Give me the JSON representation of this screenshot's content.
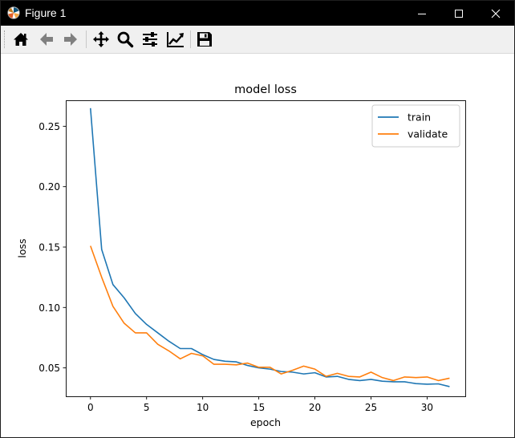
{
  "window": {
    "title": "Figure 1",
    "controls": {
      "minimize_icon": "minimize-icon",
      "maximize_icon": "maximize-icon",
      "close_icon": "close-icon"
    }
  },
  "toolbar": {
    "buttons": [
      {
        "name": "home",
        "icon": "home-icon"
      },
      {
        "name": "back",
        "icon": "back-arrow-icon"
      },
      {
        "name": "forward",
        "icon": "forward-arrow-icon"
      },
      {
        "name": "pan",
        "icon": "move-icon"
      },
      {
        "name": "zoom",
        "icon": "magnifier-icon"
      },
      {
        "name": "subplots",
        "icon": "sliders-icon"
      },
      {
        "name": "edit-curves",
        "icon": "trend-chart-icon"
      },
      {
        "name": "save",
        "icon": "floppy-disk-icon"
      }
    ]
  },
  "chart_data": {
    "type": "line",
    "title": "model loss",
    "xlabel": "epoch",
    "ylabel": "loss",
    "xlim": [
      -2.2,
      33.4
    ],
    "ylim": [
      0.0265,
      0.2715
    ],
    "xticks": [
      0,
      5,
      10,
      15,
      20,
      25,
      30
    ],
    "xtick_labels": [
      "0",
      "5",
      "10",
      "15",
      "20",
      "25",
      "30"
    ],
    "yticks": [
      0.05,
      0.1,
      0.15,
      0.2,
      0.25
    ],
    "ytick_labels": [
      "0.05",
      "0.10",
      "0.15",
      "0.20",
      "0.25"
    ],
    "grid": false,
    "legend_position": "top-right",
    "x": [
      0,
      1,
      2,
      3,
      4,
      5,
      6,
      7,
      8,
      9,
      10,
      11,
      12,
      13,
      14,
      15,
      16,
      17,
      18,
      19,
      20,
      21,
      22,
      23,
      24,
      25,
      26,
      27,
      28,
      29,
      30,
      31,
      32
    ],
    "series": [
      {
        "name": "train",
        "color": "#1f77b4",
        "values": [
          0.265,
          0.148,
          0.119,
          0.108,
          0.095,
          0.086,
          0.079,
          0.072,
          0.066,
          0.066,
          0.061,
          0.057,
          0.0555,
          0.055,
          0.052,
          0.05,
          0.049,
          0.047,
          0.0465,
          0.045,
          0.046,
          0.0425,
          0.043,
          0.0405,
          0.0395,
          0.0405,
          0.039,
          0.0385,
          0.0385,
          0.037,
          0.0365,
          0.0368,
          0.0345
        ]
      },
      {
        "name": "validate",
        "color": "#ff7f0e",
        "values": [
          0.151,
          0.125,
          0.101,
          0.087,
          0.079,
          0.079,
          0.0695,
          0.064,
          0.0575,
          0.062,
          0.06,
          0.053,
          0.053,
          0.0525,
          0.054,
          0.0505,
          0.0505,
          0.045,
          0.048,
          0.0515,
          0.049,
          0.043,
          0.0455,
          0.043,
          0.0425,
          0.0465,
          0.042,
          0.0395,
          0.0425,
          0.042,
          0.0425,
          0.0395,
          0.0415
        ]
      }
    ]
  }
}
